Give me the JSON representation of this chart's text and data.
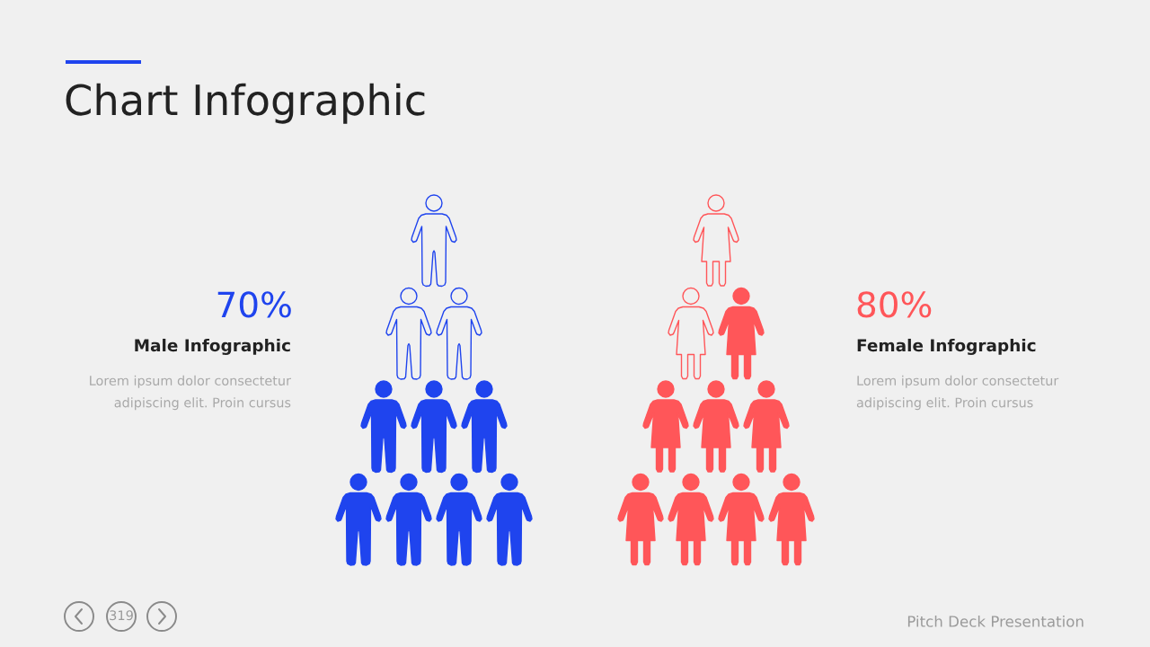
{
  "chart_data": {
    "type": "other",
    "title": "Chart Infographic",
    "categories": [
      "Male Infographic",
      "Female Infographic"
    ],
    "values": [
      70,
      80
    ],
    "value_labels": [
      "70%",
      "80%"
    ],
    "colors": [
      "#1f44ee",
      "#ff5659"
    ],
    "annotations": [
      "Lorem ipsum dolor consectetur\nadipiscing elit. Proin cursus",
      "Lorem ipsum dolor consectetur\nadipiscing elit. Proin cursus",
      "319",
      "Pitch Deck Presentation"
    ]
  }
}
